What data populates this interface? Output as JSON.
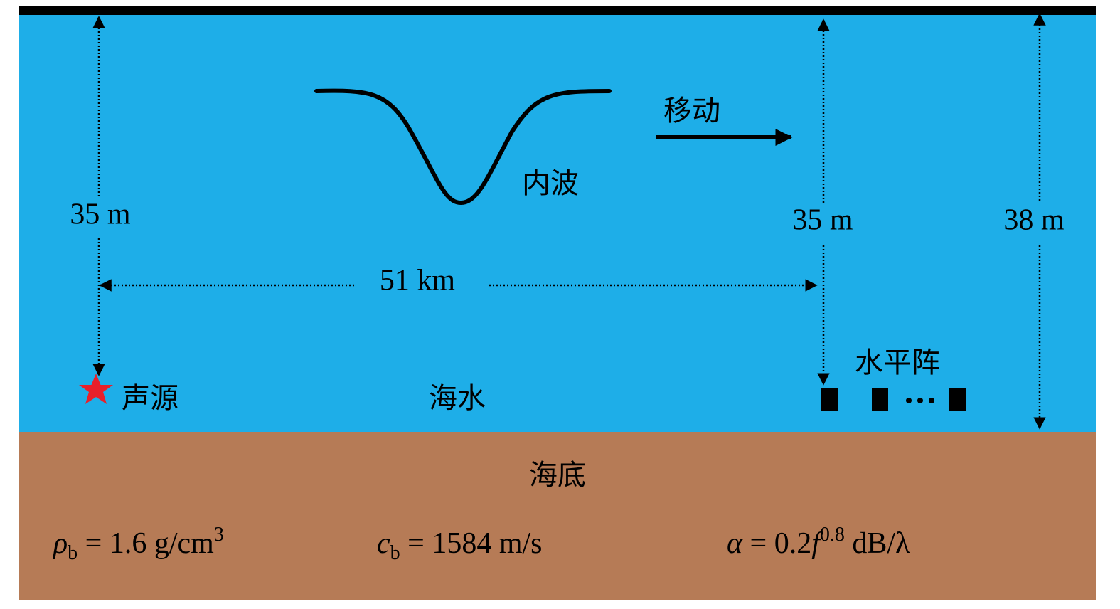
{
  "labels": {
    "source_depth": "35 m",
    "array_depth": "35 m",
    "water_depth": "38 m",
    "range": "51 km",
    "motion": "移动",
    "internal_wave": "内波",
    "source": "声源",
    "water": "海水",
    "array": "水平阵",
    "seabed": "海底"
  },
  "seabed_params": [
    [
      {
        "text": "ρ",
        "pos": "base",
        "italic": true
      },
      {
        "text": "b",
        "pos": "sub"
      },
      {
        "text": " = 1.6 g/cm",
        "pos": "base"
      },
      {
        "text": "3",
        "pos": "sup"
      }
    ],
    [
      {
        "text": "c",
        "pos": "base",
        "italic": true
      },
      {
        "text": "b",
        "pos": "sub"
      },
      {
        "text": " = 1584 m/s",
        "pos": "base"
      }
    ],
    [
      {
        "text": "α",
        "pos": "base",
        "italic": true
      },
      {
        "text": " = 0.2",
        "pos": "base"
      },
      {
        "text": "f",
        "pos": "base",
        "italic": true
      },
      {
        "text": "0.8",
        "pos": "sup"
      },
      {
        "text": " dB/λ",
        "pos": "base"
      }
    ]
  ]
}
